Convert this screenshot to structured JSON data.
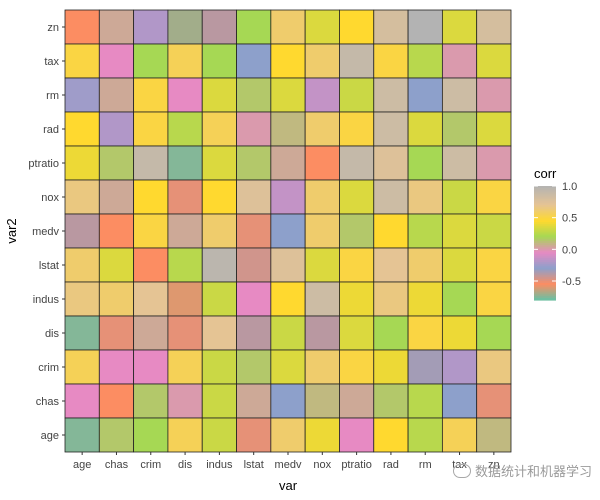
{
  "chart_data": {
    "type": "heatmap",
    "xlabel": "var",
    "ylabel": "var2",
    "x_categories": [
      "age",
      "chas",
      "crim",
      "dis",
      "indus",
      "lstat",
      "medv",
      "nox",
      "ptratio",
      "rad",
      "rm",
      "tax",
      "zn"
    ],
    "y_categories": [
      "age",
      "chas",
      "crim",
      "dis",
      "indus",
      "lstat",
      "medv",
      "nox",
      "ptratio",
      "rad",
      "rm",
      "tax",
      "zn"
    ],
    "rows": {
      "zn": [
        -0.55,
        0.05,
        -0.2,
        -0.7,
        -0.4,
        0.2,
        0.6,
        0.35,
        0.45,
        0.8,
        1.0,
        0.35,
        0.8
      ],
      "tax": [
        0.5,
        -0.05,
        0.2,
        0.55,
        0.2,
        -0.3,
        0.45,
        0.6,
        0.9,
        0.5,
        0.25,
        0.0,
        0.35
      ],
      "rm": [
        -0.25,
        0.05,
        0.5,
        -0.05,
        0.35,
        0.15,
        0.35,
        -0.15,
        0.3,
        0.85,
        -0.3,
        0.85,
        0.0
      ],
      "rad": [
        0.45,
        -0.2,
        0.5,
        0.25,
        0.55,
        0.0,
        0.1,
        0.6,
        0.5,
        0.85,
        0.35,
        0.15,
        0.35
      ],
      "ptratio": [
        0.4,
        0.15,
        0.9,
        -0.75,
        0.35,
        0.15,
        0.05,
        -0.55,
        0.9,
        0.75,
        0.2,
        0.85,
        0.0
      ],
      "nox": [
        0.65,
        0.05,
        0.45,
        -0.5,
        0.45,
        0.75,
        -0.15,
        0.6,
        0.35,
        0.85,
        0.65,
        0.3,
        0.5
      ],
      "medv": [
        -0.4,
        -0.55,
        0.5,
        0.05,
        0.6,
        -0.5,
        -0.3,
        0.6,
        0.15,
        0.45,
        0.25,
        0.35,
        0.3
      ],
      "lstat": [
        0.6,
        0.35,
        -0.55,
        0.25,
        0.95,
        -0.45,
        0.75,
        0.35,
        0.5,
        0.7,
        0.6,
        0.35,
        0.5
      ],
      "indus": [
        0.65,
        0.6,
        0.7,
        -0.6,
        0.3,
        -0.05,
        0.45,
        0.85,
        0.4,
        0.65,
        0.4,
        0.2,
        0.5
      ],
      "dis": [
        -0.75,
        -0.5,
        0.05,
        -0.5,
        0.7,
        -0.4,
        0.3,
        -0.4,
        0.35,
        0.2,
        0.5,
        0.4,
        0.2
      ],
      "crim": [
        0.55,
        -0.05,
        -0.05,
        0.55,
        0.3,
        0.15,
        0.35,
        0.6,
        0.5,
        0.4,
        -0.35,
        -0.2,
        0.65
      ],
      "chas": [
        -0.05,
        -0.55,
        0.15,
        0.0,
        0.3,
        0.05,
        -0.3,
        0.1,
        0.05,
        0.15,
        0.25,
        -0.3,
        -0.5
      ],
      "age": [
        -0.75,
        0.15,
        0.2,
        0.55,
        0.3,
        -0.5,
        0.6,
        0.4,
        -0.05,
        0.45,
        0.25,
        0.55,
        0.1
      ]
    },
    "legend": {
      "title": "corr",
      "ticks": [
        "1.0",
        "0.5",
        "0.0",
        "-0.5"
      ],
      "tick_values": [
        1.0,
        0.5,
        0.0,
        -0.5
      ],
      "range": [
        -0.8,
        1.0
      ]
    },
    "colors": {
      "c_-0.80": "#66c2a5",
      "c_-0.55": "#fc8d62",
      "c_-0.30": "#8da0cb",
      "c_-0.05": "#e78ac3",
      "c_0.20": "#a6d854",
      "c_0.45": "#ffd92f",
      "c_0.70": "#e5c494",
      "c_1.00": "#b3b3b3"
    },
    "grid": false
  },
  "watermark": {
    "text": "数据统计和机器学习",
    "icon": "wechat-icon"
  }
}
